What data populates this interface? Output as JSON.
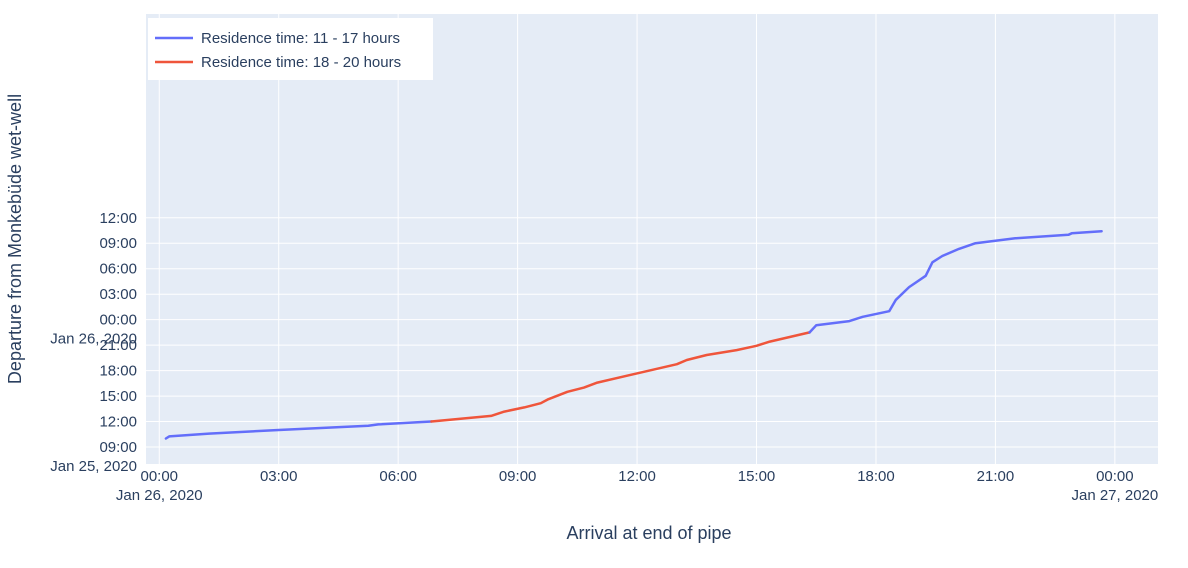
{
  "chart_data": {
    "type": "line",
    "xlabel": "Arrival at end of pipe",
    "ylabel": "Departure from Monkebüde wet-well",
    "xlim": [
      "2020-01-25 23:40",
      "2020-01-27 01:05"
    ],
    "ylim": [
      "2020-01-25 07:00",
      "2020-01-27 12:00"
    ],
    "grid": true,
    "legend": "top-left",
    "x_ticks": [
      {
        "at": "2020-01-26 00:00",
        "label": "00:00",
        "sublabel": "Jan 26, 2020"
      },
      {
        "at": "2020-01-26 03:00",
        "label": "03:00",
        "sublabel": ""
      },
      {
        "at": "2020-01-26 06:00",
        "label": "06:00",
        "sublabel": ""
      },
      {
        "at": "2020-01-26 09:00",
        "label": "09:00",
        "sublabel": ""
      },
      {
        "at": "2020-01-26 12:00",
        "label": "12:00",
        "sublabel": ""
      },
      {
        "at": "2020-01-26 15:00",
        "label": "15:00",
        "sublabel": ""
      },
      {
        "at": "2020-01-26 18:00",
        "label": "18:00",
        "sublabel": ""
      },
      {
        "at": "2020-01-26 21:00",
        "label": "21:00",
        "sublabel": ""
      },
      {
        "at": "2020-01-27 00:00",
        "label": "00:00",
        "sublabel": "Jan 27, 2020"
      }
    ],
    "y_ticks": [
      {
        "at": "2020-01-25 09:00",
        "label": "09:00",
        "sublabel": "Jan 25, 2020"
      },
      {
        "at": "2020-01-25 12:00",
        "label": "12:00",
        "sublabel": ""
      },
      {
        "at": "2020-01-25 15:00",
        "label": "15:00",
        "sublabel": ""
      },
      {
        "at": "2020-01-25 18:00",
        "label": "18:00",
        "sublabel": ""
      },
      {
        "at": "2020-01-25 21:00",
        "label": "21:00",
        "sublabel": ""
      },
      {
        "at": "2020-01-26 00:00",
        "label": "00:00",
        "sublabel": "Jan 26, 2020"
      },
      {
        "at": "2020-01-26 03:00",
        "label": "03:00",
        "sublabel": ""
      },
      {
        "at": "2020-01-26 06:00",
        "label": "06:00",
        "sublabel": ""
      },
      {
        "at": "2020-01-26 09:00",
        "label": "09:00",
        "sublabel": ""
      },
      {
        "at": "2020-01-26 12:00",
        "label": "12:00",
        "sublabel": ""
      }
    ],
    "series": [
      {
        "name": "Residence time: 11 - 17 hours",
        "color": "#636efa",
        "points": [
          [
            "2020-01-26 00:10",
            "2020-01-25 10:00"
          ],
          [
            "2020-01-26 00:15",
            "2020-01-25 10:15"
          ],
          [
            "2020-01-26 01:15",
            "2020-01-25 10:35"
          ],
          [
            "2020-01-26 03:00",
            "2020-01-25 11:00"
          ],
          [
            "2020-01-26 05:15",
            "2020-01-25 11:30"
          ],
          [
            "2020-01-26 05:30",
            "2020-01-25 11:40"
          ],
          [
            "2020-01-26 06:50",
            "2020-01-25 12:00"
          ]
        ]
      },
      {
        "name": "Residence time: 18 - 20 hours",
        "color": "#ef553b",
        "points": [
          [
            "2020-01-26 06:50",
            "2020-01-25 12:00"
          ],
          [
            "2020-01-26 08:20",
            "2020-01-25 12:40"
          ],
          [
            "2020-01-26 08:40",
            "2020-01-25 13:10"
          ],
          [
            "2020-01-26 09:10",
            "2020-01-25 13:40"
          ],
          [
            "2020-01-26 09:35",
            "2020-01-25 14:10"
          ],
          [
            "2020-01-26 09:45",
            "2020-01-25 14:35"
          ],
          [
            "2020-01-26 10:15",
            "2020-01-25 15:30"
          ],
          [
            "2020-01-26 10:40",
            "2020-01-25 16:00"
          ],
          [
            "2020-01-26 11:00",
            "2020-01-25 16:35"
          ],
          [
            "2020-01-26 13:00",
            "2020-01-25 18:45"
          ],
          [
            "2020-01-26 13:15",
            "2020-01-25 19:15"
          ],
          [
            "2020-01-26 13:45",
            "2020-01-25 19:50"
          ],
          [
            "2020-01-26 14:30",
            "2020-01-25 20:25"
          ],
          [
            "2020-01-26 15:00",
            "2020-01-25 20:55"
          ],
          [
            "2020-01-26 15:20",
            "2020-01-25 21:25"
          ],
          [
            "2020-01-26 16:20",
            "2020-01-25 22:30"
          ]
        ]
      },
      {
        "name": "Residence time: 11 - 17 hours",
        "color": "#636efa",
        "points": [
          [
            "2020-01-26 16:20",
            "2020-01-25 22:30"
          ],
          [
            "2020-01-26 16:30",
            "2020-01-25 23:20"
          ],
          [
            "2020-01-26 17:20",
            "2020-01-25 23:50"
          ],
          [
            "2020-01-26 17:40",
            "2020-01-26 00:20"
          ],
          [
            "2020-01-26 18:20",
            "2020-01-26 01:00"
          ],
          [
            "2020-01-26 18:30",
            "2020-01-26 02:20"
          ],
          [
            "2020-01-26 18:50",
            "2020-01-26 03:50"
          ],
          [
            "2020-01-26 19:15",
            "2020-01-26 05:10"
          ],
          [
            "2020-01-26 19:25",
            "2020-01-26 06:45"
          ],
          [
            "2020-01-26 19:40",
            "2020-01-26 07:30"
          ],
          [
            "2020-01-26 20:05",
            "2020-01-26 08:20"
          ],
          [
            "2020-01-26 20:30",
            "2020-01-26 09:00"
          ],
          [
            "2020-01-26 21:30",
            "2020-01-26 09:35"
          ],
          [
            "2020-01-26 22:50",
            "2020-01-26 10:00"
          ],
          [
            "2020-01-26 22:55",
            "2020-01-26 10:10"
          ],
          [
            "2020-01-26 23:40",
            "2020-01-26 10:25"
          ]
        ]
      }
    ],
    "legend_entries": [
      {
        "label": "Residence time: 11 - 17 hours",
        "color": "#636efa"
      },
      {
        "label": "Residence time: 18 - 20 hours",
        "color": "#ef553b"
      }
    ]
  }
}
